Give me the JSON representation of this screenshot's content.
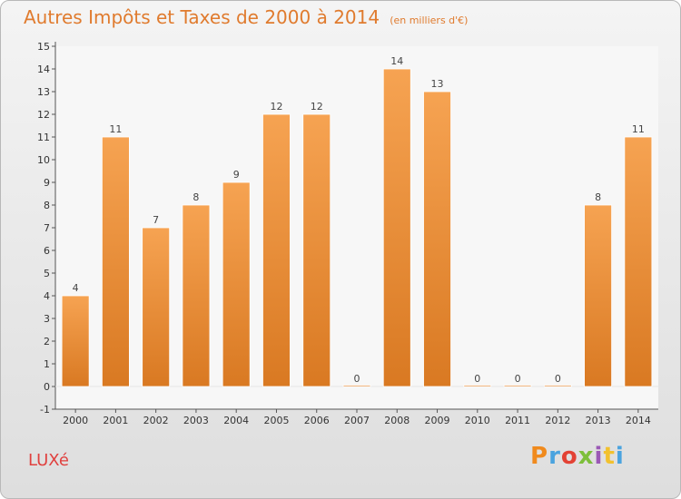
{
  "title": "Autres Impôts et Taxes de 2000 à 2014",
  "unit": "(en milliers d'€)",
  "commune": "LUXé",
  "logo": {
    "text": "Proxiti",
    "colors": [
      "#f08a1d",
      "#4aa3df",
      "#e34234",
      "#7dbf3a",
      "#9b59b6",
      "#f2c12e",
      "#4aa3df"
    ]
  },
  "colors": {
    "bar": "#f19a3e",
    "title": "#e07b2e",
    "commune": "#e0413f"
  },
  "chart_data": {
    "type": "bar",
    "categories": [
      "2000",
      "2001",
      "2002",
      "2003",
      "2004",
      "2005",
      "2006",
      "2007",
      "2008",
      "2009",
      "2010",
      "2011",
      "2012",
      "2013",
      "2014"
    ],
    "values": [
      4,
      11,
      7,
      8,
      9,
      12,
      12,
      0,
      14,
      13,
      0,
      0,
      0,
      8,
      11
    ],
    "ylim": [
      -1,
      15
    ],
    "yticks": [
      -1,
      0,
      1,
      2,
      3,
      4,
      5,
      6,
      7,
      8,
      9,
      10,
      11,
      12,
      13,
      14,
      15
    ],
    "xlabel": "",
    "ylabel": "",
    "grid": false,
    "legend": "none"
  }
}
